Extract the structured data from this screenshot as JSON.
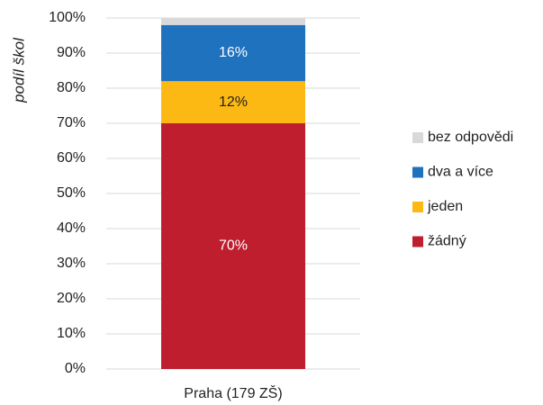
{
  "chart_data": {
    "type": "stacked_bar",
    "ylabel": "podíl škol",
    "categories": [
      "Praha (179 ZŠ)"
    ],
    "series": [
      {
        "name": "žádný",
        "color": "#be1e2d",
        "values": [
          70
        ],
        "value_labels": [
          "70%"
        ]
      },
      {
        "name": "jeden",
        "color": "#fdb913",
        "values": [
          12
        ],
        "value_labels": [
          "12%"
        ]
      },
      {
        "name": "dva a více",
        "color": "#1f72bd",
        "values": [
          16
        ],
        "value_labels": [
          "16%"
        ]
      },
      {
        "name": "bez odpovědi",
        "color": "#d9d9d9",
        "values": [
          2
        ]
      }
    ],
    "ylim": [
      0,
      100
    ],
    "yticks": [
      {
        "value": 0,
        "label": "0%"
      },
      {
        "value": 10,
        "label": "10%"
      },
      {
        "value": 20,
        "label": "20%"
      },
      {
        "value": 30,
        "label": "30%"
      },
      {
        "value": 40,
        "label": "40%"
      },
      {
        "value": 50,
        "label": "50%"
      },
      {
        "value": 60,
        "label": "60%"
      },
      {
        "value": 70,
        "label": "70%"
      },
      {
        "value": 80,
        "label": "80%"
      },
      {
        "value": 90,
        "label": "90%"
      },
      {
        "value": 100,
        "label": "100%"
      }
    ],
    "grid": true,
    "legend": "right"
  }
}
